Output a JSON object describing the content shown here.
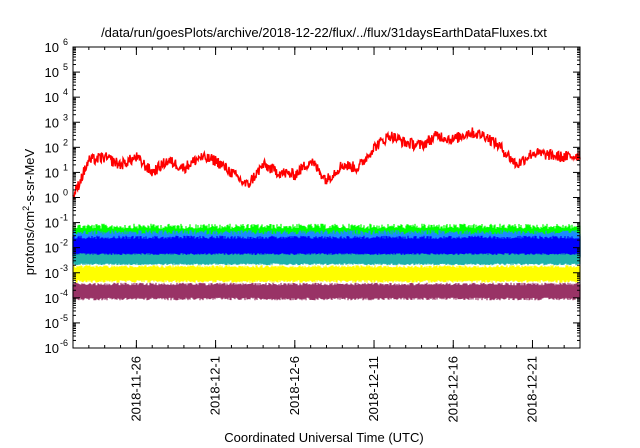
{
  "chart_data": {
    "type": "line",
    "title": "/data/run/goesPlots/archive/2018-12-22/flux/../flux/31daysEarthDataFluxes.txt",
    "xlabel": "Coordinated Universal Time (UTC)",
    "ylabel": "protons/cm2-s-sr-MeV",
    "ylabel_parts": {
      "before": "protons/cm",
      "sup": "2",
      "after": "-s-sr-MeV"
    },
    "yscale": "log",
    "ylim": [
      "1e-6",
      "1e6"
    ],
    "xlim": [
      "2018-11-22",
      "2018-12-24"
    ],
    "grid": false,
    "y_ticks": [
      {
        "exp": "-6",
        "label_base": "10",
        "label_exp": "-6"
      },
      {
        "exp": "-5",
        "label_base": "10",
        "label_exp": "-5"
      },
      {
        "exp": "-4",
        "label_base": "10",
        "label_exp": "-4"
      },
      {
        "exp": "-3",
        "label_base": "10",
        "label_exp": "-3"
      },
      {
        "exp": "-2",
        "label_base": "10",
        "label_exp": "-2"
      },
      {
        "exp": "-1",
        "label_base": "10",
        "label_exp": "-1"
      },
      {
        "exp": "0",
        "label_base": "10",
        "label_exp": "0"
      },
      {
        "exp": "1",
        "label_base": "10",
        "label_exp": "1"
      },
      {
        "exp": "2",
        "label_base": "10",
        "label_exp": "2"
      },
      {
        "exp": "3",
        "label_base": "10",
        "label_exp": "3"
      },
      {
        "exp": "4",
        "label_base": "10",
        "label_exp": "4"
      },
      {
        "exp": "5",
        "label_base": "10",
        "label_exp": "5"
      },
      {
        "exp": "6",
        "label_base": "10",
        "label_exp": "6"
      }
    ],
    "x_ticks": [
      "2018-11-26",
      "2018-12-1",
      "2018-12-6",
      "2018-12-11",
      "2018-12-16",
      "2018-12-21"
    ],
    "x_tick_dates": [
      "2018-11-26",
      "2018-12-01",
      "2018-12-06",
      "2018-12-11",
      "2018-12-16",
      "2018-12-21"
    ],
    "series": [
      {
        "color": "#ff0000",
        "style": "line",
        "dates": [
          "2018-11-22",
          "2018-11-23",
          "2018-11-24",
          "2018-11-25",
          "2018-11-26",
          "2018-11-27",
          "2018-11-28",
          "2018-11-29",
          "2018-11-30",
          "2018-12-01",
          "2018-12-02",
          "2018-12-03",
          "2018-12-04",
          "2018-12-05",
          "2018-12-06",
          "2018-12-07",
          "2018-12-08",
          "2018-12-09",
          "2018-12-10",
          "2018-12-11",
          "2018-12-12",
          "2018-12-13",
          "2018-12-14",
          "2018-12-15",
          "2018-12-16",
          "2018-12-17",
          "2018-12-18",
          "2018-12-19",
          "2018-12-20",
          "2018-12-21",
          "2018-12-22",
          "2018-12-23",
          "2018-12-24"
        ],
        "values": [
          1,
          30,
          40,
          20,
          40,
          10,
          30,
          15,
          40,
          30,
          10,
          3,
          20,
          10,
          8,
          30,
          5,
          20,
          15,
          100,
          300,
          150,
          120,
          300,
          200,
          400,
          300,
          100,
          20,
          60,
          50,
          40,
          50
        ]
      },
      {
        "color": "#00ff00",
        "style": "band",
        "range": [
          0.004,
          0.09
        ]
      },
      {
        "color": "#1a8cff",
        "style": "band",
        "range": [
          0.003,
          0.05
        ]
      },
      {
        "color": "#0000ff",
        "style": "band",
        "range": [
          0.004,
          0.03
        ]
      },
      {
        "color": "#20b2aa",
        "style": "band",
        "range": [
          0.002,
          0.006
        ]
      },
      {
        "color": "#ffff00",
        "style": "band",
        "range": [
          0.0004,
          0.002
        ]
      },
      {
        "color": "#993366",
        "style": "band",
        "range": [
          8e-05,
          0.0004
        ]
      }
    ]
  }
}
